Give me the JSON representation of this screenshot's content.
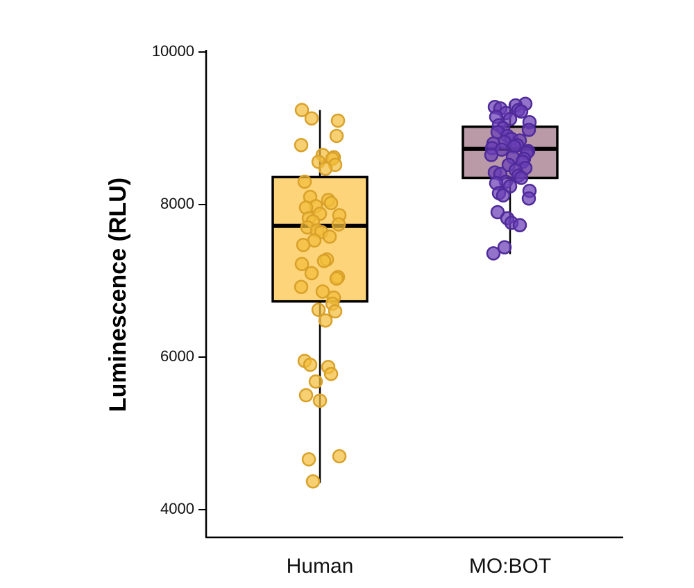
{
  "chart_data": {
    "type": "box",
    "title": "",
    "xlabel": "",
    "ylabel": "Luminescence (RLU)",
    "ylim": [
      3600,
      10000
    ],
    "yticks": [
      4000,
      6000,
      8000,
      10000
    ],
    "grid": false,
    "legend": "none",
    "categories": [
      "Human",
      "MO:BOT"
    ],
    "series": [
      {
        "name": "Human",
        "fill": "#FDD47A",
        "point_color": "#F2BE3C",
        "point_edge": "#D9A12A",
        "box": {
          "whisker_low": 4350,
          "q1": 6730,
          "median": 7720,
          "q3": 8360,
          "whisker_high": 9240
        },
        "points": [
          9240,
          9130,
          9100,
          8900,
          8780,
          8650,
          8620,
          8600,
          8560,
          8520,
          8470,
          8300,
          8100,
          8060,
          8020,
          7980,
          7960,
          7880,
          7860,
          7820,
          7780,
          7740,
          7700,
          7660,
          7640,
          7580,
          7530,
          7470,
          7280,
          7260,
          7220,
          7100,
          7050,
          7030,
          6920,
          6860,
          6780,
          6700,
          6620,
          6600,
          6480,
          5950,
          5900,
          5870,
          5780,
          5680,
          5500,
          5430,
          4700,
          4660,
          4370
        ]
      },
      {
        "name": "MO:BOT",
        "fill": "#B99AA6",
        "point_color": "#6A3FB5",
        "point_edge": "#4F2A9A",
        "box": {
          "whisker_low": 7350,
          "q1": 8350,
          "median": 8730,
          "q3": 9020,
          "whisker_high": 9330
        },
        "points": [
          9320,
          9300,
          9280,
          9260,
          9240,
          9220,
          9200,
          9150,
          9120,
          9080,
          9040,
          9000,
          8980,
          8950,
          8900,
          8860,
          8840,
          8820,
          8800,
          8780,
          8760,
          8740,
          8720,
          8700,
          8680,
          8650,
          8620,
          8600,
          8560,
          8520,
          8480,
          8450,
          8420,
          8400,
          8380,
          8350,
          8300,
          8280,
          8240,
          8180,
          8150,
          8120,
          8080,
          7900,
          7820,
          7760,
          7730,
          7440,
          7360
        ]
      }
    ]
  }
}
